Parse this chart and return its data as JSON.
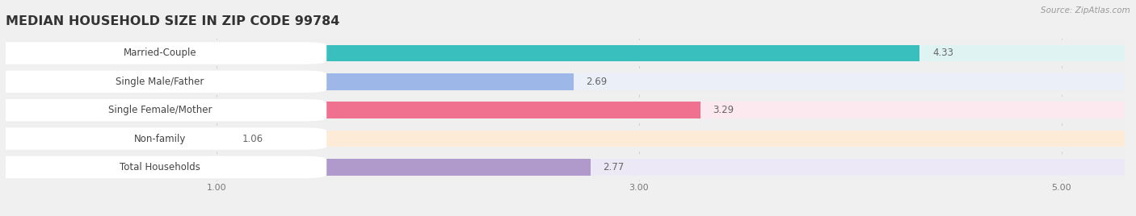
{
  "title": "MEDIAN HOUSEHOLD SIZE IN ZIP CODE 99784",
  "categories": [
    "Married-Couple",
    "Single Male/Father",
    "Single Female/Mother",
    "Non-family",
    "Total Households"
  ],
  "values": [
    4.33,
    2.69,
    3.29,
    1.06,
    2.77
  ],
  "bar_colors": [
    "#3abfbf",
    "#9db8e8",
    "#f07090",
    "#f5c899",
    "#b09acc"
  ],
  "bar_bg_colors": [
    "#e0f3f3",
    "#eaeff8",
    "#fce8ef",
    "#fdebd8",
    "#ede8f5"
  ],
  "row_bg_color": "#efefef",
  "row_white_color": "#ffffff",
  "xlim_min": 0,
  "xlim_max": 5.3,
  "xlim_display_max": 5.0,
  "xticks": [
    1.0,
    3.0,
    5.0
  ],
  "xtick_labels": [
    "1.00",
    "3.00",
    "5.00"
  ],
  "source_text": "Source: ZipAtlas.com",
  "title_fontsize": 11.5,
  "label_fontsize": 8.5,
  "value_fontsize": 8.5,
  "background_color": "#f0f0f0"
}
